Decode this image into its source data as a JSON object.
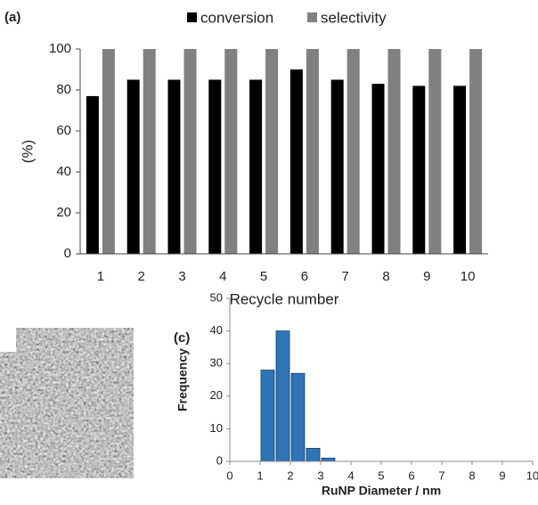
{
  "chart_data": [
    {
      "type": "bar",
      "panel": "(a)",
      "categories": [
        "1",
        "2",
        "3",
        "4",
        "5",
        "6",
        "7",
        "8",
        "9",
        "10"
      ],
      "series": [
        {
          "name": "conversion",
          "color": "#000000",
          "values": [
            77,
            85,
            85,
            85,
            85,
            90,
            85,
            83,
            82,
            82
          ]
        },
        {
          "name": "selectivity",
          "color": "#808080",
          "values": [
            100,
            100,
            100,
            100,
            100,
            100,
            100,
            100,
            100,
            100
          ]
        }
      ],
      "x_label": "Recycle number",
      "y_label": "(%)",
      "ylim": [
        0,
        100
      ],
      "yticks": [
        0,
        20,
        40,
        60,
        80,
        100
      ],
      "legend": "top"
    },
    {
      "type": "histogram",
      "panel": "(c)",
      "bins": [
        1,
        1.5,
        2,
        2.5,
        3,
        3.5
      ],
      "values": [
        28,
        40,
        27,
        4,
        1
      ],
      "color": "#2e75b6",
      "x_label": "RuNP Diameter / nm",
      "y_label": "Frequency",
      "xlim": [
        0,
        10
      ],
      "xticks": [
        0,
        1,
        2,
        3,
        4,
        5,
        6,
        7,
        8,
        9,
        10
      ],
      "ylim": [
        0,
        50
      ],
      "yticks": [
        0,
        10,
        20,
        30,
        40,
        50
      ]
    }
  ]
}
